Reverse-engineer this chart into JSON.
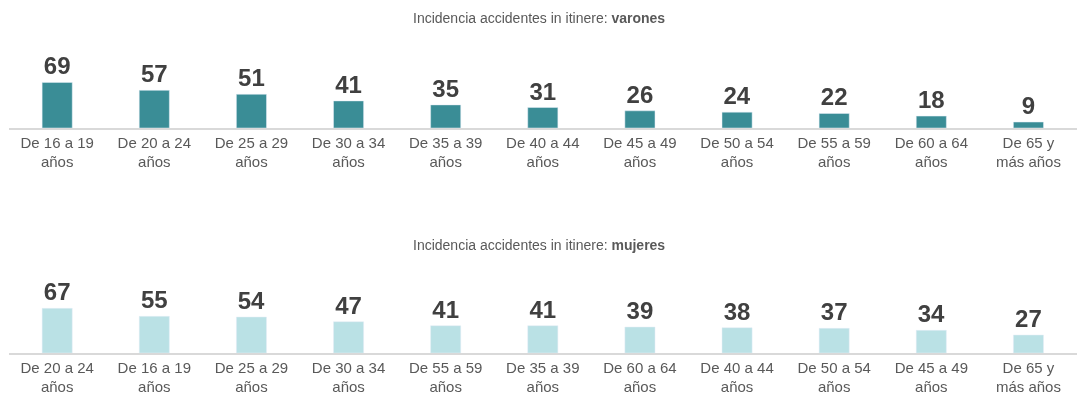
{
  "chart_data": [
    {
      "type": "bar",
      "title": "Incidencia accidentes in itinere: varones",
      "categories": [
        "De 16 a 19 años",
        "De 20 a 24 años",
        "De 25 a 29 años",
        "De 30 a 34 años",
        "De 35 a 39 años",
        "De 40 a 44 años",
        "De 45 a 49 años",
        "De 50 a 54 años",
        "De 55 a 59 años",
        "De 60 a 64 años",
        "De 65 y más años"
      ],
      "values": [
        69,
        57,
        51,
        41,
        35,
        31,
        26,
        24,
        22,
        18,
        9
      ],
      "color": "#3a8d96",
      "data_labels": true,
      "tick_labels": "x"
    },
    {
      "type": "bar",
      "title": "Incidencia accidentes in itinere: mujeres",
      "categories": [
        "De 20 a 24 años",
        "De 16 a 19 años",
        "De 25 a 29 años",
        "De 30 a 34 años",
        "De 55 a 59 años",
        "De 35 a 39 años",
        "De 60 a 64 años",
        "De 40 a 44 años",
        "De 50 a 54 años",
        "De 45 a 49 años",
        "De 65 y más años"
      ],
      "values": [
        67,
        55,
        54,
        47,
        41,
        41,
        39,
        38,
        37,
        34,
        27
      ],
      "color": "#bae1e5",
      "data_labels": true,
      "tick_labels": "x"
    }
  ]
}
